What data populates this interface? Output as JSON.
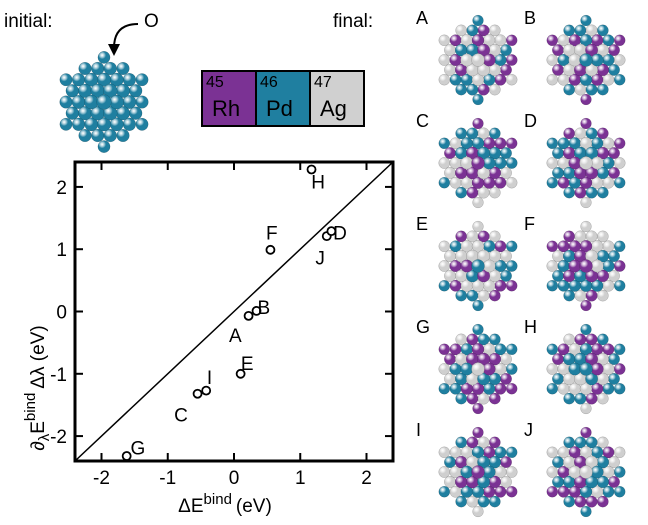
{
  "header": {
    "initial_label": "initial:",
    "o_label": "O",
    "final_label": "final:"
  },
  "periodic": [
    {
      "number": "45",
      "symbol": "Rh",
      "color": "#7B3294"
    },
    {
      "number": "46",
      "symbol": "Pd",
      "color": "#1F7FA0"
    },
    {
      "number": "47",
      "symbol": "Ag",
      "color": "#D0D0D0"
    }
  ],
  "colors": {
    "rh": "#7B3294",
    "pd": "#1F7FA0",
    "ag": "#CFCFCF",
    "initial": "#1F7FA0"
  },
  "chart_data": {
    "type": "scatter",
    "xlabel": "ΔE",
    "xlabel_sup": "bind",
    "xlabel_unit": "(eV)",
    "ylabel": "∂",
    "ylabel_sub": "λ",
    "ylabel_rest": "E",
    "ylabel_sup": "bind",
    "ylabel_tail": "Δλ (eV)",
    "xlim": [
      -2.4,
      2.4
    ],
    "ylim": [
      -2.4,
      2.4
    ],
    "xticks": [
      -2,
      -1,
      0,
      1,
      2
    ],
    "yticks": [
      -2,
      -1,
      0,
      1,
      2
    ],
    "reference_line": "y = x",
    "points": [
      {
        "x": -1.62,
        "y": -2.32
      },
      {
        "x": -0.55,
        "y": -1.32
      },
      {
        "x": -0.42,
        "y": -1.27
      },
      {
        "x": 0.1,
        "y": -1.0
      },
      {
        "x": 0.22,
        "y": -0.07
      },
      {
        "x": 0.34,
        "y": 0.01
      },
      {
        "x": 0.55,
        "y": 0.99
      },
      {
        "x": 1.17,
        "y": 2.28
      },
      {
        "x": 1.4,
        "y": 1.21
      },
      {
        "x": 1.47,
        "y": 1.29
      }
    ],
    "annotations": [
      {
        "text": "G",
        "x": -1.45,
        "y": -2.18
      },
      {
        "text": "C",
        "x": -0.8,
        "y": -1.65
      },
      {
        "text": "I",
        "x": -0.37,
        "y": -1.05
      },
      {
        "text": "E",
        "x": 0.2,
        "y": -0.83
      },
      {
        "text": "A",
        "x": 0.02,
        "y": -0.38
      },
      {
        "text": "B",
        "x": 0.45,
        "y": 0.07
      },
      {
        "text": "F",
        "x": 0.57,
        "y": 1.27
      },
      {
        "text": "H",
        "x": 1.27,
        "y": 2.09
      },
      {
        "text": "J",
        "x": 1.3,
        "y": 0.87
      },
      {
        "text": "D",
        "x": 1.6,
        "y": 1.27
      }
    ]
  },
  "clusters": [
    {
      "label": "A",
      "seed": 1
    },
    {
      "label": "B",
      "seed": 2
    },
    {
      "label": "C",
      "seed": 3
    },
    {
      "label": "D",
      "seed": 4
    },
    {
      "label": "E",
      "seed": 5
    },
    {
      "label": "F",
      "seed": 6
    },
    {
      "label": "G",
      "seed": 7
    },
    {
      "label": "H",
      "seed": 8
    },
    {
      "label": "I",
      "seed": 9
    },
    {
      "label": "J",
      "seed": 10
    }
  ]
}
